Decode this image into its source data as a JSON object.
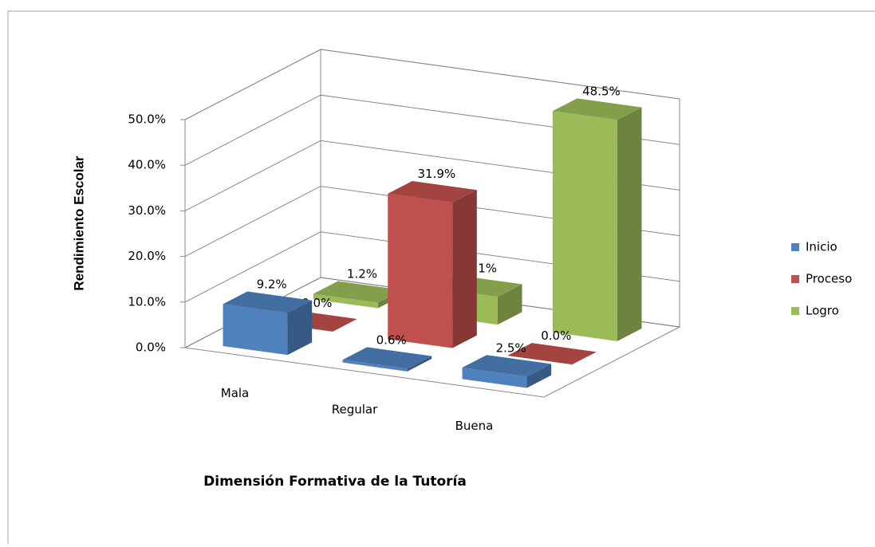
{
  "chart_data": {
    "type": "bar3d",
    "x_label": "Dimensión Formativa de la Tutoría",
    "y_label": "Rendimiento Escolar",
    "categories": [
      "Mala",
      "Regular",
      "Buena"
    ],
    "series": [
      {
        "name": "Inicio",
        "color": "#4f81bd",
        "values": [
          9.2,
          0.6,
          2.5
        ],
        "value_labels": [
          "9.2%",
          "0.6%",
          "2.5%"
        ]
      },
      {
        "name": "Proceso",
        "color": "#c0504d",
        "values": [
          0.0,
          31.9,
          0.0
        ],
        "value_labels": [
          "0.0%",
          "31.9%",
          "0.0%"
        ]
      },
      {
        "name": "Logro",
        "color": "#9bbb59",
        "values": [
          1.2,
          6.1,
          48.5
        ],
        "value_labels": [
          "1.2%",
          "6.1%",
          "48.5%"
        ]
      }
    ],
    "ylim": [
      0,
      50
    ],
    "yticks": [
      {
        "value": 0,
        "label": "0.0%"
      },
      {
        "value": 10,
        "label": "10.0%"
      },
      {
        "value": 20,
        "label": "20.0%"
      },
      {
        "value": 30,
        "label": "30.0%"
      },
      {
        "value": 40,
        "label": "40.0%"
      },
      {
        "value": 50,
        "label": "50.0%"
      }
    ],
    "grid": true,
    "legend": "right"
  }
}
